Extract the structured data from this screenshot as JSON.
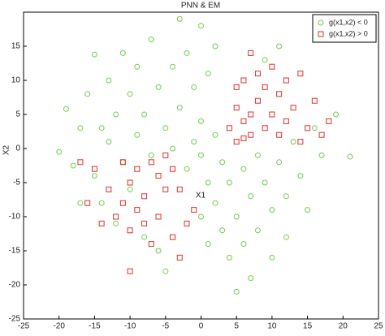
{
  "chart_data": {
    "type": "scatter",
    "title": "PNN & EM",
    "xlabel": "X1",
    "ylabel": "X2",
    "xlim": [
      -25,
      25
    ],
    "ylim": [
      -25,
      20
    ],
    "xticks": [
      -25,
      -20,
      -15,
      -10,
      -5,
      0,
      5,
      10,
      15,
      20,
      25
    ],
    "yticks": [
      -25,
      -20,
      -15,
      -10,
      -5,
      0,
      5,
      10,
      15
    ],
    "grid": false,
    "legend": "upper right",
    "series": [
      {
        "name": "g(x1,x2) < 0",
        "color": "#6fcf4a",
        "marker": "circle",
        "x": [
          -20,
          -19,
          -18,
          -17,
          -16,
          -15,
          -15,
          -14,
          -13,
          -13,
          -12,
          -12,
          -11,
          -11,
          -10,
          -10,
          -9,
          -9,
          -8,
          -8,
          -7,
          -7,
          -6,
          -6,
          -5,
          -5,
          -4,
          -4,
          -3,
          -3,
          -2,
          -2,
          -1,
          -1,
          0,
          0,
          0,
          0,
          1,
          1,
          1,
          2,
          2,
          2,
          3,
          3,
          4,
          4,
          5,
          5,
          6,
          6,
          7,
          7,
          8,
          8,
          9,
          9,
          10,
          10,
          11,
          12,
          12,
          13,
          14,
          15,
          16,
          17,
          19,
          21,
          11,
          -17,
          -14
        ],
        "y": [
          -0.5,
          5.8,
          -2.5,
          3,
          8,
          13.8,
          -4,
          -8,
          10,
          1,
          -11,
          5,
          14,
          -2,
          8,
          -6,
          2,
          12,
          -13,
          5,
          16,
          -1,
          9,
          -15,
          3,
          -18,
          12,
          0,
          19,
          6,
          -3,
          14,
          1,
          9,
          18,
          -1,
          4,
          -10,
          -5,
          11,
          -14,
          2,
          -8,
          15,
          -2,
          -12,
          -16,
          -5,
          -21,
          -10,
          -3,
          -14,
          -19,
          -7,
          -1,
          -12,
          13,
          -5,
          -9,
          -16,
          -2,
          -7,
          -13,
          1,
          -4,
          -9,
          3,
          -1,
          5,
          -1.2,
          15,
          -8,
          3
        ]
      },
      {
        "name": "g(x1,x2) > 0",
        "color": "#e0302a",
        "marker": "square",
        "x": [
          4,
          5,
          5,
          6,
          6,
          7,
          7,
          8,
          8,
          9,
          9,
          10,
          10,
          11,
          11,
          12,
          12,
          13,
          14,
          15,
          16,
          17,
          18,
          14,
          6,
          7,
          5,
          -4,
          -5,
          -5,
          -6,
          -6,
          -7,
          -7,
          -8,
          -8,
          -9,
          -9,
          -10,
          -10,
          -11,
          -11,
          -12,
          -13,
          -14,
          -15,
          -16,
          -17,
          -10,
          -3,
          -2,
          -3,
          -1,
          -4
        ],
        "y": [
          3,
          1,
          6,
          10,
          4,
          14,
          2,
          7,
          11,
          3,
          9,
          12,
          5,
          2,
          8,
          10,
          4,
          6,
          11,
          3,
          7,
          2,
          4,
          1,
          1.5,
          5,
          9,
          -3,
          -1,
          -6,
          -10,
          -4,
          -14,
          -2,
          -7,
          -11,
          -3,
          -9,
          -12,
          -5,
          -2,
          -8,
          -10,
          -6,
          -11,
          -3,
          -8,
          -2,
          -18,
          -16,
          -11,
          -6,
          -9,
          -13
        ]
      }
    ]
  }
}
